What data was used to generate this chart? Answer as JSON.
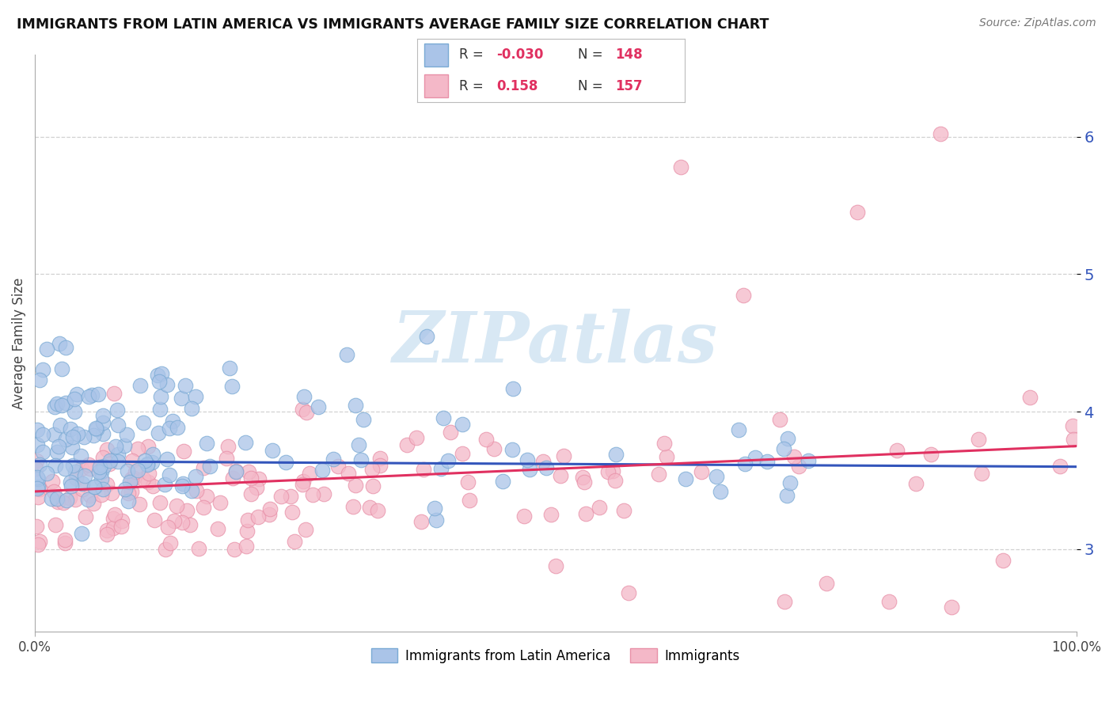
{
  "title": "IMMIGRANTS FROM LATIN AMERICA VS IMMIGRANTS AVERAGE FAMILY SIZE CORRELATION CHART",
  "source": "Source: ZipAtlas.com",
  "ylabel": "Average Family Size",
  "xlim": [
    0,
    1
  ],
  "ylim": [
    2.4,
    6.6
  ],
  "yticks": [
    3.0,
    4.0,
    5.0,
    6.0
  ],
  "series1_color": "#aac4e8",
  "series1_edge": "#7aaad4",
  "series2_color": "#f4b8c8",
  "series2_edge": "#e890a8",
  "trend1_color": "#3355bb",
  "trend2_color": "#e03060",
  "ytick_color": "#3355bb",
  "watermark_color": "#d8e8f4",
  "watermark_text": "ZIPatlas",
  "background_color": "#ffffff",
  "grid_color": "#cccccc",
  "legend_R1": "-0.030",
  "legend_N1": "148",
  "legend_R2": "0.158",
  "legend_N2": "157",
  "trend1_y0": 3.64,
  "trend1_y1": 3.6,
  "trend2_y0": 3.42,
  "trend2_y1": 3.75
}
